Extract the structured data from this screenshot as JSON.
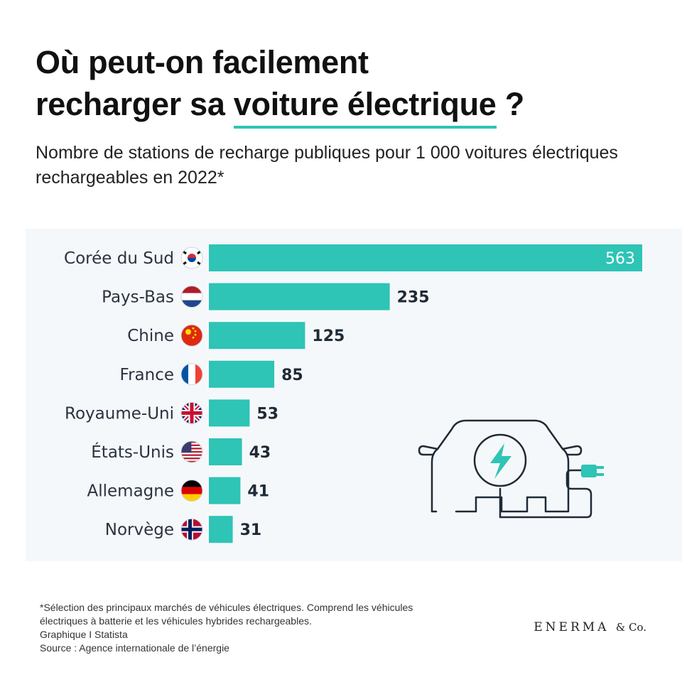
{
  "header": {
    "title_line1": "Où peut-on facilement",
    "title_line2_prefix": "recharger sa ",
    "title_line2_highlight": "voiture électrique",
    "title_line2_suffix": " ?",
    "subtitle": "Nombre de stations de recharge publiques pour 1 000 voitures électriques rechargeables en 2022*"
  },
  "colors": {
    "accent": "#2ec4b6",
    "bar": "#2ec4b6",
    "panel": "#f5f8fa",
    "icon_stroke": "#1f2a36"
  },
  "chart_data": {
    "type": "bar",
    "orientation": "horizontal",
    "title": "Où peut-on facilement recharger sa voiture électrique ?",
    "subtitle": "Nombre de stations de recharge publiques pour 1 000 voitures électriques rechargeables en 2022*",
    "categories": [
      "Corée du Sud",
      "Pays-Bas",
      "Chine",
      "France",
      "Royaume-Uni",
      "États-Unis",
      "Allemagne",
      "Norvège"
    ],
    "values": [
      563,
      235,
      125,
      85,
      53,
      43,
      41,
      31
    ],
    "flags": [
      "flag-south-korea",
      "flag-netherlands",
      "flag-china",
      "flag-france",
      "flag-united-kingdom",
      "flag-united-states",
      "flag-germany",
      "flag-norway"
    ],
    "xlim": [
      0,
      563
    ],
    "grid": false,
    "xlabel": "",
    "ylabel": ""
  },
  "footnote": {
    "note": "*Sélection des principaux marchés de véhicules électriques. Comprend les véhicules\nélectriques à batterie et les véhicules hybrides rechargeables.",
    "credit": "Graphique I Statista",
    "source": "Source : Agence internationale de l’énergie"
  },
  "brand": {
    "name": "ENERMA",
    "suffix": "& Co."
  },
  "illustration": {
    "icon": "electric-car-charging-icon"
  }
}
